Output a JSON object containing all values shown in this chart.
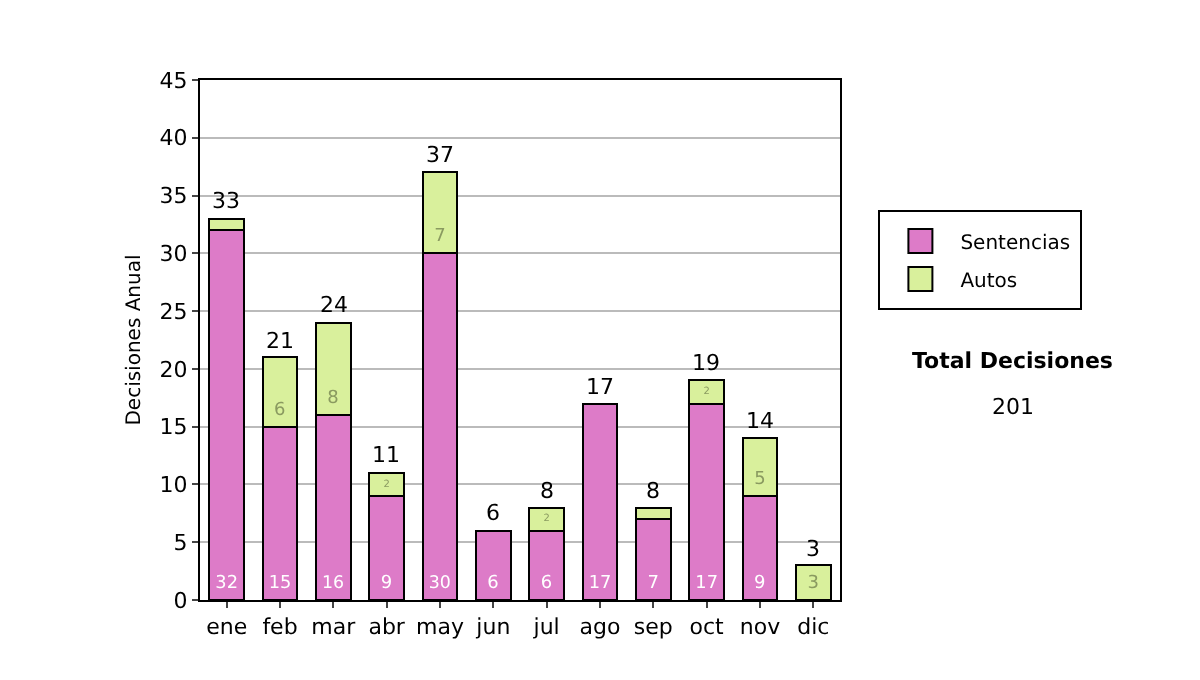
{
  "chart_data": {
    "type": "bar",
    "stacked": true,
    "ylabel": "Decisiones Anual",
    "categories": [
      "ene",
      "feb",
      "mar",
      "abr",
      "may",
      "jun",
      "jul",
      "ago",
      "sep",
      "oct",
      "nov",
      "dic"
    ],
    "series": [
      {
        "name": "Sentencias",
        "color": "#dd7bc8",
        "values": [
          32,
          15,
          16,
          9,
          30,
          6,
          6,
          17,
          7,
          17,
          9,
          0
        ],
        "value_labels": [
          "32",
          "15",
          "16",
          "9",
          "30",
          "6",
          "6",
          "17",
          "7",
          "17",
          "9",
          null
        ]
      },
      {
        "name": "Autos",
        "color": "#d9f09c",
        "values": [
          1,
          6,
          8,
          2,
          7,
          0,
          2,
          0,
          1,
          2,
          5,
          3
        ],
        "value_labels": [
          null,
          "6",
          "8",
          "2",
          "7",
          null,
          "2",
          null,
          null,
          "2",
          "5",
          "3"
        ]
      }
    ],
    "totals": [
      "33",
      "21",
      "24",
      "11",
      "37",
      "6",
      "8",
      "17",
      "8",
      "19",
      "14",
      "3"
    ],
    "ylim": [
      0,
      45
    ],
    "yticks": [
      0,
      5,
      10,
      15,
      20,
      25,
      30,
      35,
      40,
      45
    ],
    "grid": "y",
    "legend": "right",
    "annotations": [
      "Total Decisiones",
      "201"
    ]
  }
}
